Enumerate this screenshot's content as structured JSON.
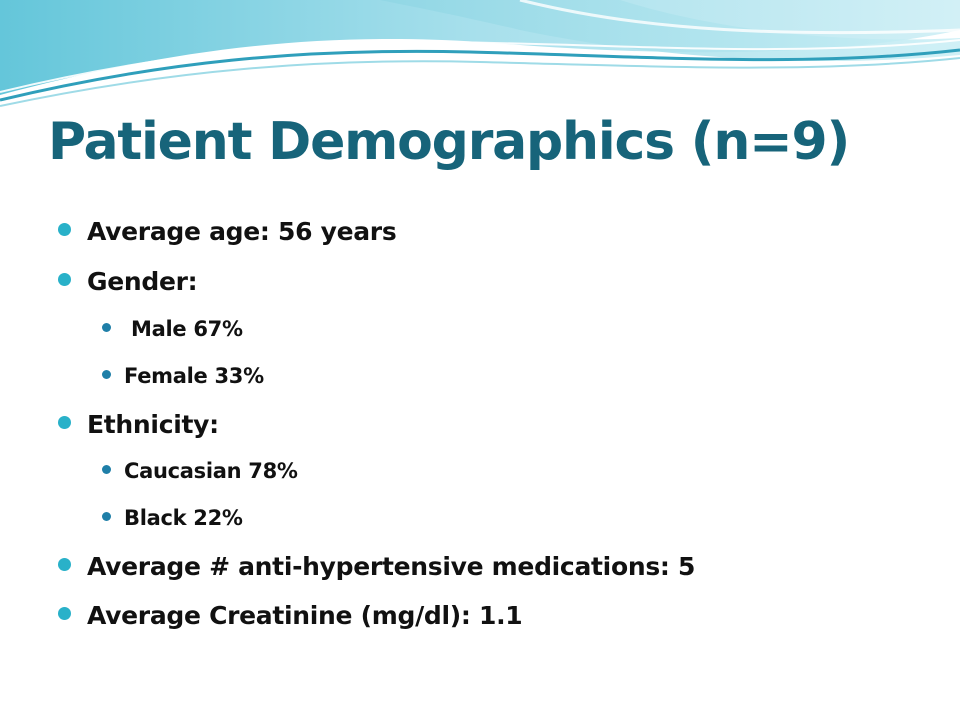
{
  "slide": {
    "title": "Patient Demographics (n=9)"
  },
  "bullets": {
    "avg_age": "Average age: 56 years",
    "gender": "Gender:",
    "male": " Male 67%",
    "female": "Female 33%",
    "ethnicity": "Ethnicity:",
    "caucasian": "Caucasian 78%",
    "black": "Black 22%",
    "avg_meds": "Average # anti-hypertensive medications: 5",
    "avg_creatinine": "Average Creatinine (mg/dl): 1.1"
  },
  "colors": {
    "title": "#17647a",
    "bullet_level1": "#29b1c9",
    "bullet_level2": "#1f7fa8",
    "wave_light": "#bfe8f0",
    "wave_mid": "#7fd0e0",
    "wave_dark": "#3aa9c4"
  }
}
